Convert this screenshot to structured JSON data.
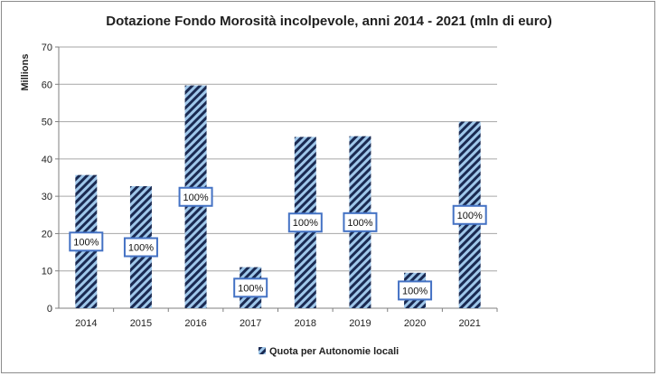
{
  "chart_data": {
    "type": "bar",
    "title": "Dotazione Fondo Morosità incolpevole, anni 2014 - 2021 (mln di euro)",
    "ylabel": "Millions",
    "xlabel": "",
    "categories": [
      "2014",
      "2015",
      "2016",
      "2017",
      "2018",
      "2019",
      "2020",
      "2021"
    ],
    "series": [
      {
        "name": "Quota per Autonomie locali",
        "values": [
          35.7,
          32.7,
          59.7,
          11.0,
          45.9,
          46.1,
          9.5,
          50.0
        ],
        "data_labels": [
          "100%",
          "100%",
          "100%",
          "100%",
          "100%",
          "100%",
          "100%",
          "100%"
        ]
      }
    ],
    "ylim": [
      0,
      70
    ],
    "yticks": [
      "0",
      "10",
      "20",
      "30",
      "40",
      "50",
      "60",
      "70"
    ],
    "grid": true,
    "legend_position": "bottom",
    "colors": {
      "bar_fill": "#9fc7ea",
      "bar_hatch": "#1a2a52",
      "label_border": "#4472c4",
      "grid": "#a6a6a6",
      "axis": "#7f7f7f"
    }
  }
}
